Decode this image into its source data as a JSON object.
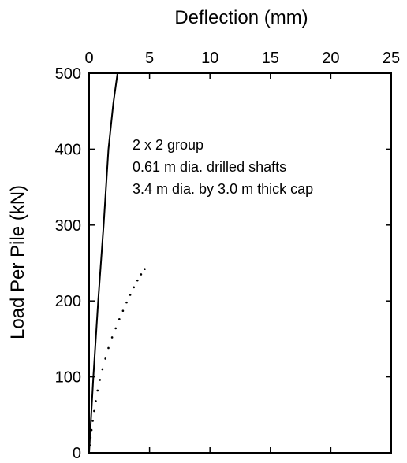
{
  "chart_data": {
    "type": "line",
    "title": "",
    "xlabel": "Deflection (mm)",
    "ylabel": "Load Per Pile (kN)",
    "x_axis_position": "top",
    "xlim": [
      0,
      25
    ],
    "ylim": [
      0,
      500
    ],
    "x_ticks": [
      0,
      5,
      10,
      15,
      20,
      25
    ],
    "y_ticks": [
      0,
      100,
      200,
      300,
      400,
      500
    ],
    "grid": false,
    "annotation_lines": [
      "2 x 2 group",
      "0.61 m dia. drilled shafts",
      "3.4 m dia. by 3.0 m thick cap"
    ],
    "series": [
      {
        "style": "solid",
        "x": [
          0,
          0.35,
          0.75,
          1.2,
          1.6,
          2.0,
          2.35
        ],
        "y": [
          0,
          100,
          200,
          300,
          400,
          460,
          500
        ]
      },
      {
        "style": "dotted",
        "x": [
          0.05,
          0.12,
          0.2,
          0.3,
          0.42,
          0.55,
          0.7,
          0.9,
          1.1,
          1.35,
          1.6,
          1.9,
          2.2,
          2.5,
          2.8,
          3.1,
          3.4,
          3.7,
          4.0,
          4.3,
          4.6
        ],
        "y": [
          10,
          20,
          30,
          42,
          55,
          68,
          82,
          96,
          110,
          124,
          138,
          152,
          164,
          176,
          187,
          198,
          208,
          218,
          227,
          235,
          242
        ]
      }
    ],
    "colors": {
      "axis": "#000000",
      "line": "#000000"
    }
  }
}
